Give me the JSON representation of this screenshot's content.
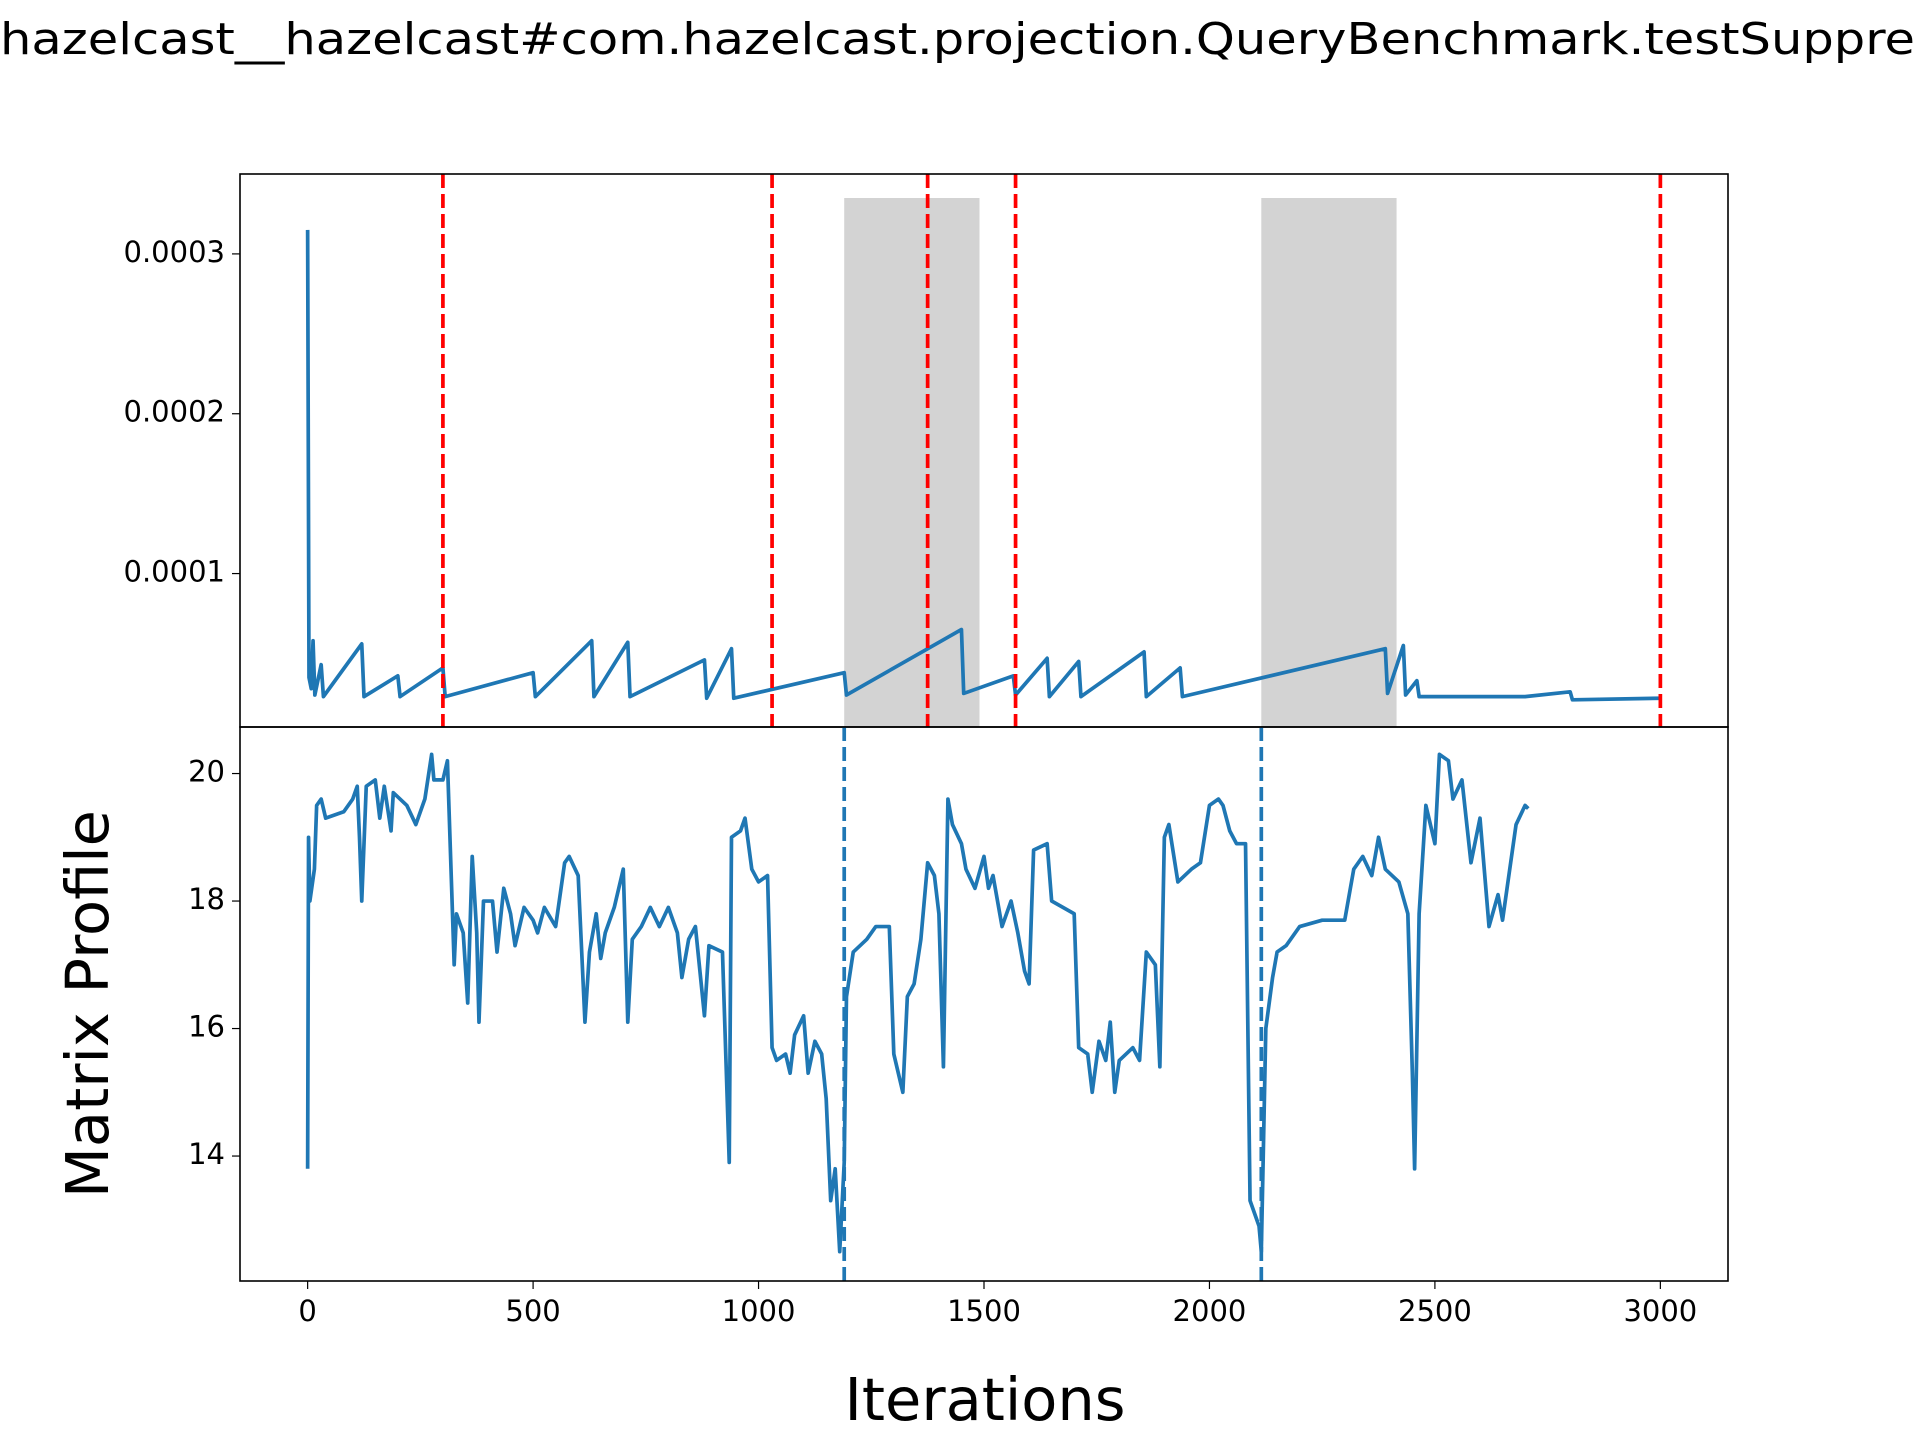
{
  "chart_data": [
    {
      "type": "line",
      "title": "hazelcast__hazelcast#com.hazelcast.projection.QueryBenchmark.testSuppre",
      "x": [
        0,
        3,
        8,
        12,
        16,
        30,
        35,
        120,
        125,
        200,
        205,
        300,
        305,
        500,
        505,
        630,
        635,
        710,
        715,
        880,
        885,
        940,
        945,
        1190,
        1195,
        1450,
        1455,
        1565,
        1570,
        1640,
        1645,
        1710,
        1715,
        1855,
        1860,
        1935,
        1940,
        2390,
        2395,
        2430,
        2435,
        2460,
        2465,
        2700,
        2800,
        2805,
        3000
      ],
      "series": [
        {
          "color": "#1f77b4",
          "values": [
            0.000315,
            3.5e-05,
            2.8e-05,
            5.8e-05,
            2.4e-05,
            4.3e-05,
            2.3e-05,
            5.6e-05,
            2.3e-05,
            3.6e-05,
            2.3e-05,
            4.1e-05,
            2.3e-05,
            3.8e-05,
            2.3e-05,
            5.8e-05,
            2.3e-05,
            5.7e-05,
            2.3e-05,
            4.6e-05,
            2.2e-05,
            5.3e-05,
            2.2e-05,
            3.8e-05,
            2.4e-05,
            6.5e-05,
            2.5e-05,
            3.6e-05,
            2.4e-05,
            4.7e-05,
            2.3e-05,
            4.5e-05,
            2.3e-05,
            5.1e-05,
            2.3e-05,
            4.1e-05,
            2.3e-05,
            5.3e-05,
            2.5e-05,
            5.5e-05,
            2.4e-05,
            3.3e-05,
            2.3e-05,
            2.3e-05,
            2.6e-05,
            2.1e-05,
            2.2e-05
          ]
        }
      ],
      "xlim": [
        -150,
        3150
      ],
      "ylim": [
        4e-06,
        0.00035
      ],
      "yticks": [
        0.0001,
        0.0002,
        0.0003
      ],
      "vlines": {
        "color": "red",
        "dashed": true,
        "x": [
          300,
          1030,
          1375,
          1570,
          3000
        ]
      },
      "spans": {
        "color": "lightgray",
        "x": [
          [
            1190,
            1490
          ],
          [
            2115,
            2415
          ]
        ]
      }
    },
    {
      "type": "line",
      "x_label": "Iterations",
      "y_label": "Matrix Profile",
      "x": [
        0,
        2,
        5,
        15,
        20,
        30,
        40,
        80,
        100,
        110,
        115,
        120,
        130,
        150,
        160,
        170,
        185,
        190,
        220,
        240,
        260,
        275,
        280,
        300,
        310,
        325,
        330,
        345,
        355,
        365,
        375,
        380,
        390,
        410,
        420,
        435,
        450,
        460,
        480,
        500,
        510,
        525,
        550,
        570,
        580,
        600,
        615,
        625,
        640,
        650,
        660,
        680,
        700,
        710,
        720,
        740,
        760,
        780,
        800,
        820,
        830,
        845,
        860,
        880,
        890,
        920,
        935,
        940,
        960,
        970,
        985,
        1000,
        1020,
        1030,
        1040,
        1060,
        1070,
        1080,
        1100,
        1110,
        1125,
        1140,
        1150,
        1160,
        1170,
        1180,
        1190,
        1195,
        1210,
        1240,
        1260,
        1290,
        1300,
        1320,
        1330,
        1345,
        1360,
        1375,
        1390,
        1400,
        1410,
        1420,
        1430,
        1450,
        1460,
        1480,
        1500,
        1510,
        1520,
        1540,
        1560,
        1575,
        1590,
        1600,
        1610,
        1640,
        1650,
        1700,
        1710,
        1730,
        1740,
        1755,
        1770,
        1780,
        1790,
        1800,
        1830,
        1845,
        1860,
        1880,
        1890,
        1900,
        1910,
        1930,
        1960,
        1980,
        2000,
        2020,
        2030,
        2045,
        2060,
        2080,
        2090,
        2100,
        2110,
        2115,
        2125,
        2140,
        2150,
        2170,
        2200,
        2250,
        2300,
        2320,
        2340,
        2360,
        2375,
        2390,
        2420,
        2440,
        2450,
        2455,
        2465,
        2480,
        2500,
        2510,
        2530,
        2540,
        2560,
        2580,
        2600,
        2620,
        2640,
        2650,
        2660,
        2680,
        2700,
        2707
      ],
      "series": [
        {
          "color": "#1f77b4",
          "values": [
            13.8,
            19.0,
            18.0,
            18.5,
            19.5,
            19.6,
            19.3,
            19.4,
            19.6,
            19.8,
            19.0,
            18.0,
            19.8,
            19.9,
            19.3,
            19.8,
            19.1,
            19.7,
            19.5,
            19.2,
            19.6,
            20.3,
            19.9,
            19.9,
            20.2,
            17.0,
            17.8,
            17.5,
            16.4,
            18.7,
            17.5,
            16.1,
            18.0,
            18.0,
            17.2,
            18.2,
            17.8,
            17.3,
            17.9,
            17.7,
            17.5,
            17.9,
            17.6,
            18.6,
            18.7,
            18.4,
            16.1,
            17.2,
            17.8,
            17.1,
            17.5,
            17.9,
            18.5,
            16.1,
            17.4,
            17.6,
            17.9,
            17.6,
            17.9,
            17.5,
            16.8,
            17.4,
            17.6,
            16.2,
            17.3,
            17.2,
            13.9,
            19.0,
            19.1,
            19.3,
            18.5,
            18.3,
            18.4,
            15.7,
            15.5,
            15.6,
            15.3,
            15.9,
            16.2,
            15.3,
            15.8,
            15.6,
            14.9,
            13.3,
            13.8,
            12.5,
            13.9,
            16.5,
            17.2,
            17.4,
            17.6,
            17.6,
            15.6,
            15.0,
            16.5,
            16.7,
            17.4,
            18.6,
            18.4,
            17.8,
            15.4,
            19.6,
            19.2,
            18.9,
            18.5,
            18.2,
            18.7,
            18.2,
            18.4,
            17.6,
            18.0,
            17.5,
            16.9,
            16.7,
            18.8,
            18.9,
            18.0,
            17.8,
            15.7,
            15.6,
            15.0,
            15.8,
            15.5,
            16.1,
            15.0,
            15.5,
            15.7,
            15.5,
            17.2,
            17.0,
            15.4,
            19.0,
            19.2,
            18.3,
            18.5,
            18.6,
            19.5,
            19.6,
            19.5,
            19.1,
            18.9,
            18.9,
            13.3,
            13.1,
            12.9,
            12.5,
            16.0,
            16.8,
            17.2,
            17.3,
            17.6,
            17.7,
            17.7,
            18.5,
            18.7,
            18.4,
            19.0,
            18.5,
            18.3,
            17.8,
            15.3,
            13.8,
            17.8,
            19.5,
            18.9,
            20.3,
            20.2,
            19.6,
            19.9,
            18.6,
            19.3,
            17.6,
            18.1,
            17.7,
            18.2,
            19.2,
            19.5,
            19.45
          ]
        }
      ],
      "xlim": [
        -150,
        3150
      ],
      "xticks": [
        0,
        500,
        1000,
        1500,
        2000,
        2500,
        3000
      ],
      "ylim": [
        12.04,
        20.73
      ],
      "yticks": [
        14,
        16,
        18,
        20
      ],
      "vlines": {
        "color": "#1f77b4",
        "dashed": true,
        "x": [
          1190,
          2115
        ]
      }
    }
  ]
}
